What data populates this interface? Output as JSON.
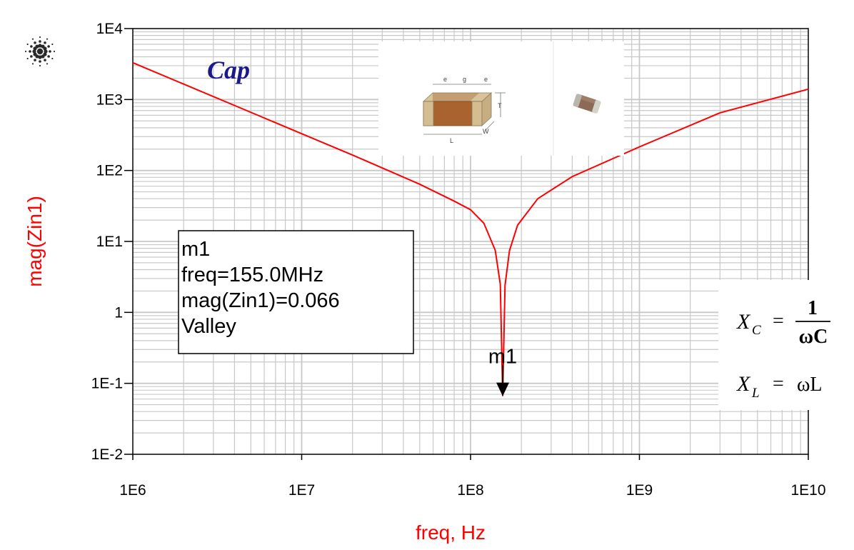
{
  "chart_data": {
    "type": "line",
    "xscale": "log",
    "yscale": "log",
    "xlim": [
      1000000,
      10000000000
    ],
    "ylim": [
      0.01,
      10000
    ],
    "xlabel": "freq, Hz",
    "ylabel": "mag(Zin1)",
    "x_tick_labels": [
      "1E6",
      "1E7",
      "1E8",
      "1E9",
      "1E10"
    ],
    "y_tick_labels": [
      "1E-2",
      "1E-1",
      "1",
      "1E1",
      "1E2",
      "1E3",
      "1E4"
    ],
    "grid": true,
    "series": [
      {
        "color": "#ff0000",
        "x": [
          1000000,
          2000000,
          5000000,
          10000000,
          20000000,
          50000000,
          80000000,
          100000000,
          120000000,
          140000000,
          150000000,
          155000000,
          160000000,
          170000000,
          190000000,
          250000000,
          400000000,
          1000000000,
          3000000000,
          10000000000
        ],
        "y": [
          3300,
          1650,
          660,
          330,
          165,
          64,
          37,
          28,
          18,
          7.5,
          2.5,
          0.066,
          2.4,
          7.4,
          17,
          40,
          82,
          215,
          650,
          1400
        ]
      }
    ],
    "marker": {
      "label": "m1",
      "x": 155000000,
      "y": 0.066,
      "lines": [
        "m1",
        "freq=155.0MHz",
        "mag(Zin1)=0.066",
        "Valley"
      ]
    },
    "annotation": "Cap"
  },
  "formulas": {
    "xc_lhs": "X",
    "xc_sub": "C",
    "equals": "=",
    "xc_num": "1",
    "xc_den": "ωC",
    "xl_lhs": "X",
    "xl_sub": "L",
    "xl_rhs": "ωL"
  },
  "inset": {
    "dim_e": "e",
    "dim_g": "g",
    "dim_T": "T",
    "dim_L": "L",
    "dim_W": "W"
  },
  "colors": {
    "curve": "#ff0000",
    "axis_titles": "#ff0000",
    "annotation": "#1a1a8c",
    "grid": "#c8c8c8",
    "logo": "#2a2a2a"
  },
  "logo": "spark-logo-icon"
}
